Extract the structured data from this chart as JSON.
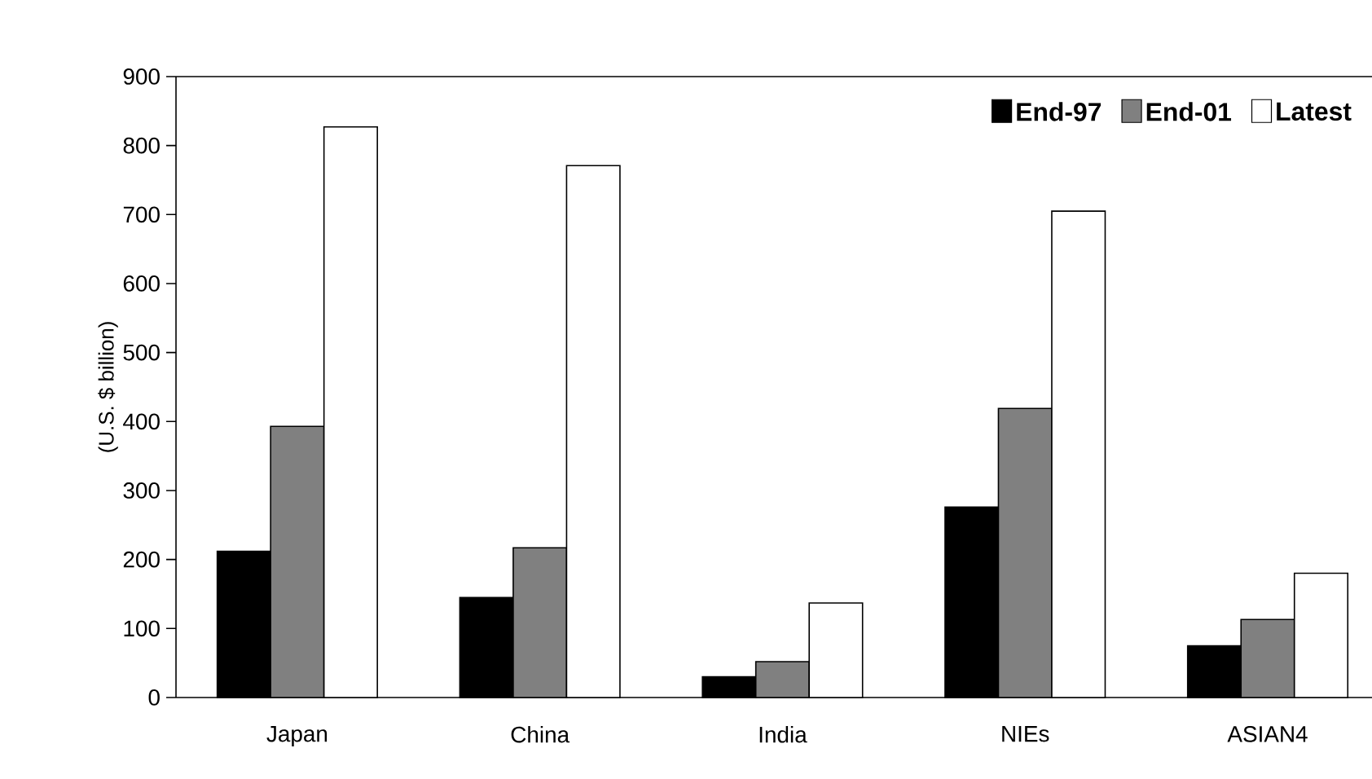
{
  "chart_data": {
    "type": "bar",
    "ylabel": "(U.S. $ billion)",
    "categories": [
      "Japan",
      "China",
      "India",
      "NIEs",
      "ASIAN4"
    ],
    "series": [
      {
        "name": "End-97",
        "color": "#000000",
        "values": [
          212,
          145,
          30,
          276,
          75
        ]
      },
      {
        "name": "End-01",
        "color": "#808080",
        "values": [
          393,
          217,
          52,
          419,
          113
        ]
      },
      {
        "name": "Latest",
        "color": "#ffffff",
        "values": [
          827,
          771,
          137,
          705,
          180
        ]
      }
    ],
    "ylim": [
      0,
      900
    ],
    "yticks": [
      0,
      100,
      200,
      300,
      400,
      500,
      600,
      700,
      800,
      900
    ],
    "grid": false,
    "legend": "top right"
  }
}
